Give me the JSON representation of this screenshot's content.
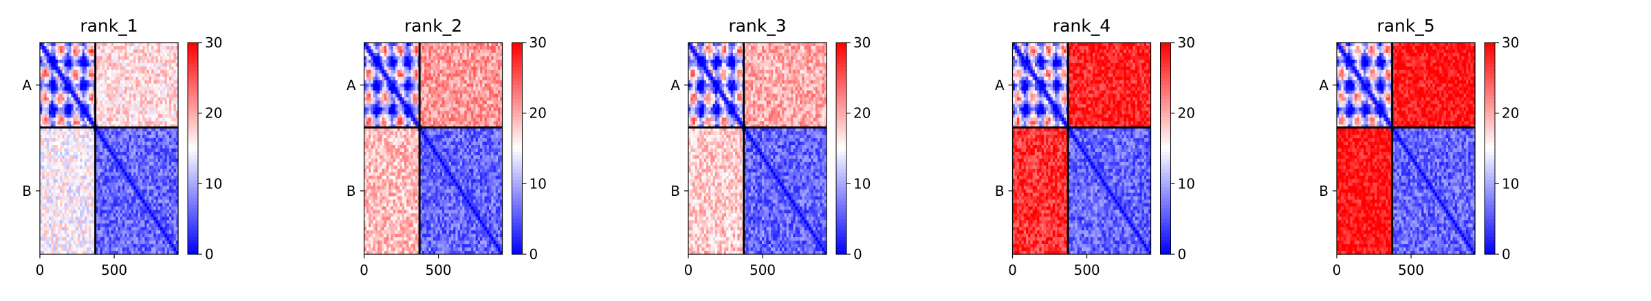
{
  "chart_data": [
    {
      "type": "heatmap",
      "title": "rank_1",
      "xticks": [
        0,
        500
      ],
      "yticks": [
        "A",
        "B"
      ],
      "xlim": [
        0,
        930
      ],
      "ylim": [
        0,
        930
      ],
      "chain_break": 373,
      "colorbar": {
        "ticks": [
          0,
          10,
          20,
          30
        ],
        "range": [
          0,
          30
        ]
      },
      "block_means": {
        "AA": 10,
        "AB": 17,
        "BA": 15,
        "BB": 6
      }
    },
    {
      "type": "heatmap",
      "title": "rank_2",
      "xticks": [
        0,
        500
      ],
      "yticks": [
        "A",
        "B"
      ],
      "xlim": [
        0,
        930
      ],
      "ylim": [
        0,
        930
      ],
      "chain_break": 373,
      "colorbar": {
        "ticks": [
          0,
          10,
          20,
          30
        ],
        "range": [
          0,
          30
        ]
      },
      "block_means": {
        "AA": 10,
        "AB": 21,
        "BA": 19,
        "BB": 6
      }
    },
    {
      "type": "heatmap",
      "title": "rank_3",
      "xticks": [
        0,
        500
      ],
      "yticks": [
        "A",
        "B"
      ],
      "xlim": [
        0,
        930
      ],
      "ylim": [
        0,
        930
      ],
      "chain_break": 373,
      "colorbar": {
        "ticks": [
          0,
          10,
          20,
          30
        ],
        "range": [
          0,
          30
        ]
      },
      "block_means": {
        "AA": 10,
        "AB": 20,
        "BA": 18,
        "BB": 6
      }
    },
    {
      "type": "heatmap",
      "title": "rank_4",
      "xticks": [
        0,
        500
      ],
      "yticks": [
        "A",
        "B"
      ],
      "xlim": [
        0,
        930
      ],
      "ylim": [
        0,
        930
      ],
      "chain_break": 373,
      "colorbar": {
        "ticks": [
          0,
          10,
          20,
          30
        ],
        "range": [
          0,
          30
        ]
      },
      "block_means": {
        "AA": 10,
        "AB": 28,
        "BA": 27,
        "BB": 6
      }
    },
    {
      "type": "heatmap",
      "title": "rank_5",
      "xticks": [
        0,
        500
      ],
      "yticks": [
        "A",
        "B"
      ],
      "xlim": [
        0,
        930
      ],
      "ylim": [
        0,
        930
      ],
      "chain_break": 373,
      "colorbar": {
        "ticks": [
          0,
          10,
          20,
          30
        ],
        "range": [
          0,
          30
        ]
      },
      "block_means": {
        "AA": 10,
        "AB": 29,
        "BA": 29,
        "BB": 6
      }
    }
  ],
  "colors": {
    "low": "#0000ff",
    "mid": "#ffffff",
    "high": "#ff0000",
    "divider": "#000000"
  }
}
